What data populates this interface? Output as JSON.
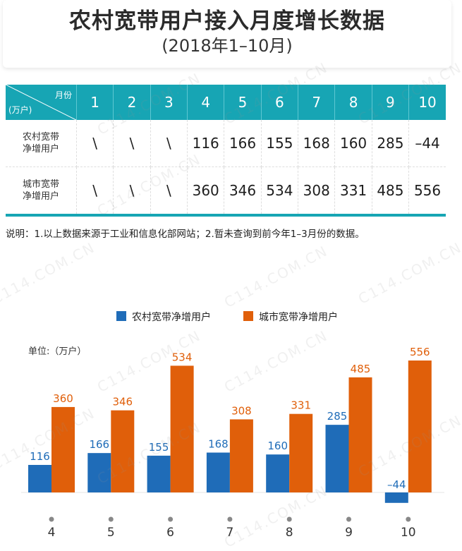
{
  "header": {
    "title": "农村宽带用户接入月度增长数据",
    "subtitle": "(2018年1–10月)"
  },
  "table": {
    "corner_month": "月份",
    "corner_unit": "(万户)",
    "months": [
      "1",
      "2",
      "3",
      "4",
      "5",
      "6",
      "7",
      "8",
      "9",
      "10"
    ],
    "rows": [
      {
        "label_line1": "农村宽带",
        "label_line2": "净增用户",
        "values": [
          "\\",
          "\\",
          "\\",
          "116",
          "166",
          "155",
          "168",
          "160",
          "285",
          "–44"
        ]
      },
      {
        "label_line1": "城市宽带",
        "label_line2": "净增用户",
        "values": [
          "\\",
          "\\",
          "\\",
          "360",
          "346",
          "534",
          "308",
          "331",
          "485",
          "556"
        ]
      }
    ]
  },
  "note": "说明：1.以上数据来源于工业和信息化部网站；2.暂未查询到前今年1–3月份的数据。",
  "watermark": "C114.COM.CN",
  "chart_data": {
    "type": "bar",
    "unit_label": "单位:（万户）",
    "categories": [
      "4",
      "5",
      "6",
      "7",
      "8",
      "9",
      "10"
    ],
    "series": [
      {
        "name": "农村宽带净增用户",
        "color": "#1f6cb8",
        "values": [
          116,
          166,
          155,
          168,
          160,
          285,
          -44
        ],
        "labels": [
          "116",
          "166",
          "155",
          "168",
          "160",
          "285",
          "–44"
        ]
      },
      {
        "name": "城市宽带净增用户",
        "color": "#e05f0a",
        "values": [
          360,
          346,
          534,
          308,
          331,
          485,
          556
        ],
        "labels": [
          "360",
          "346",
          "534",
          "308",
          "331",
          "485",
          "556"
        ]
      }
    ],
    "legend_position": "top",
    "grid": false
  }
}
